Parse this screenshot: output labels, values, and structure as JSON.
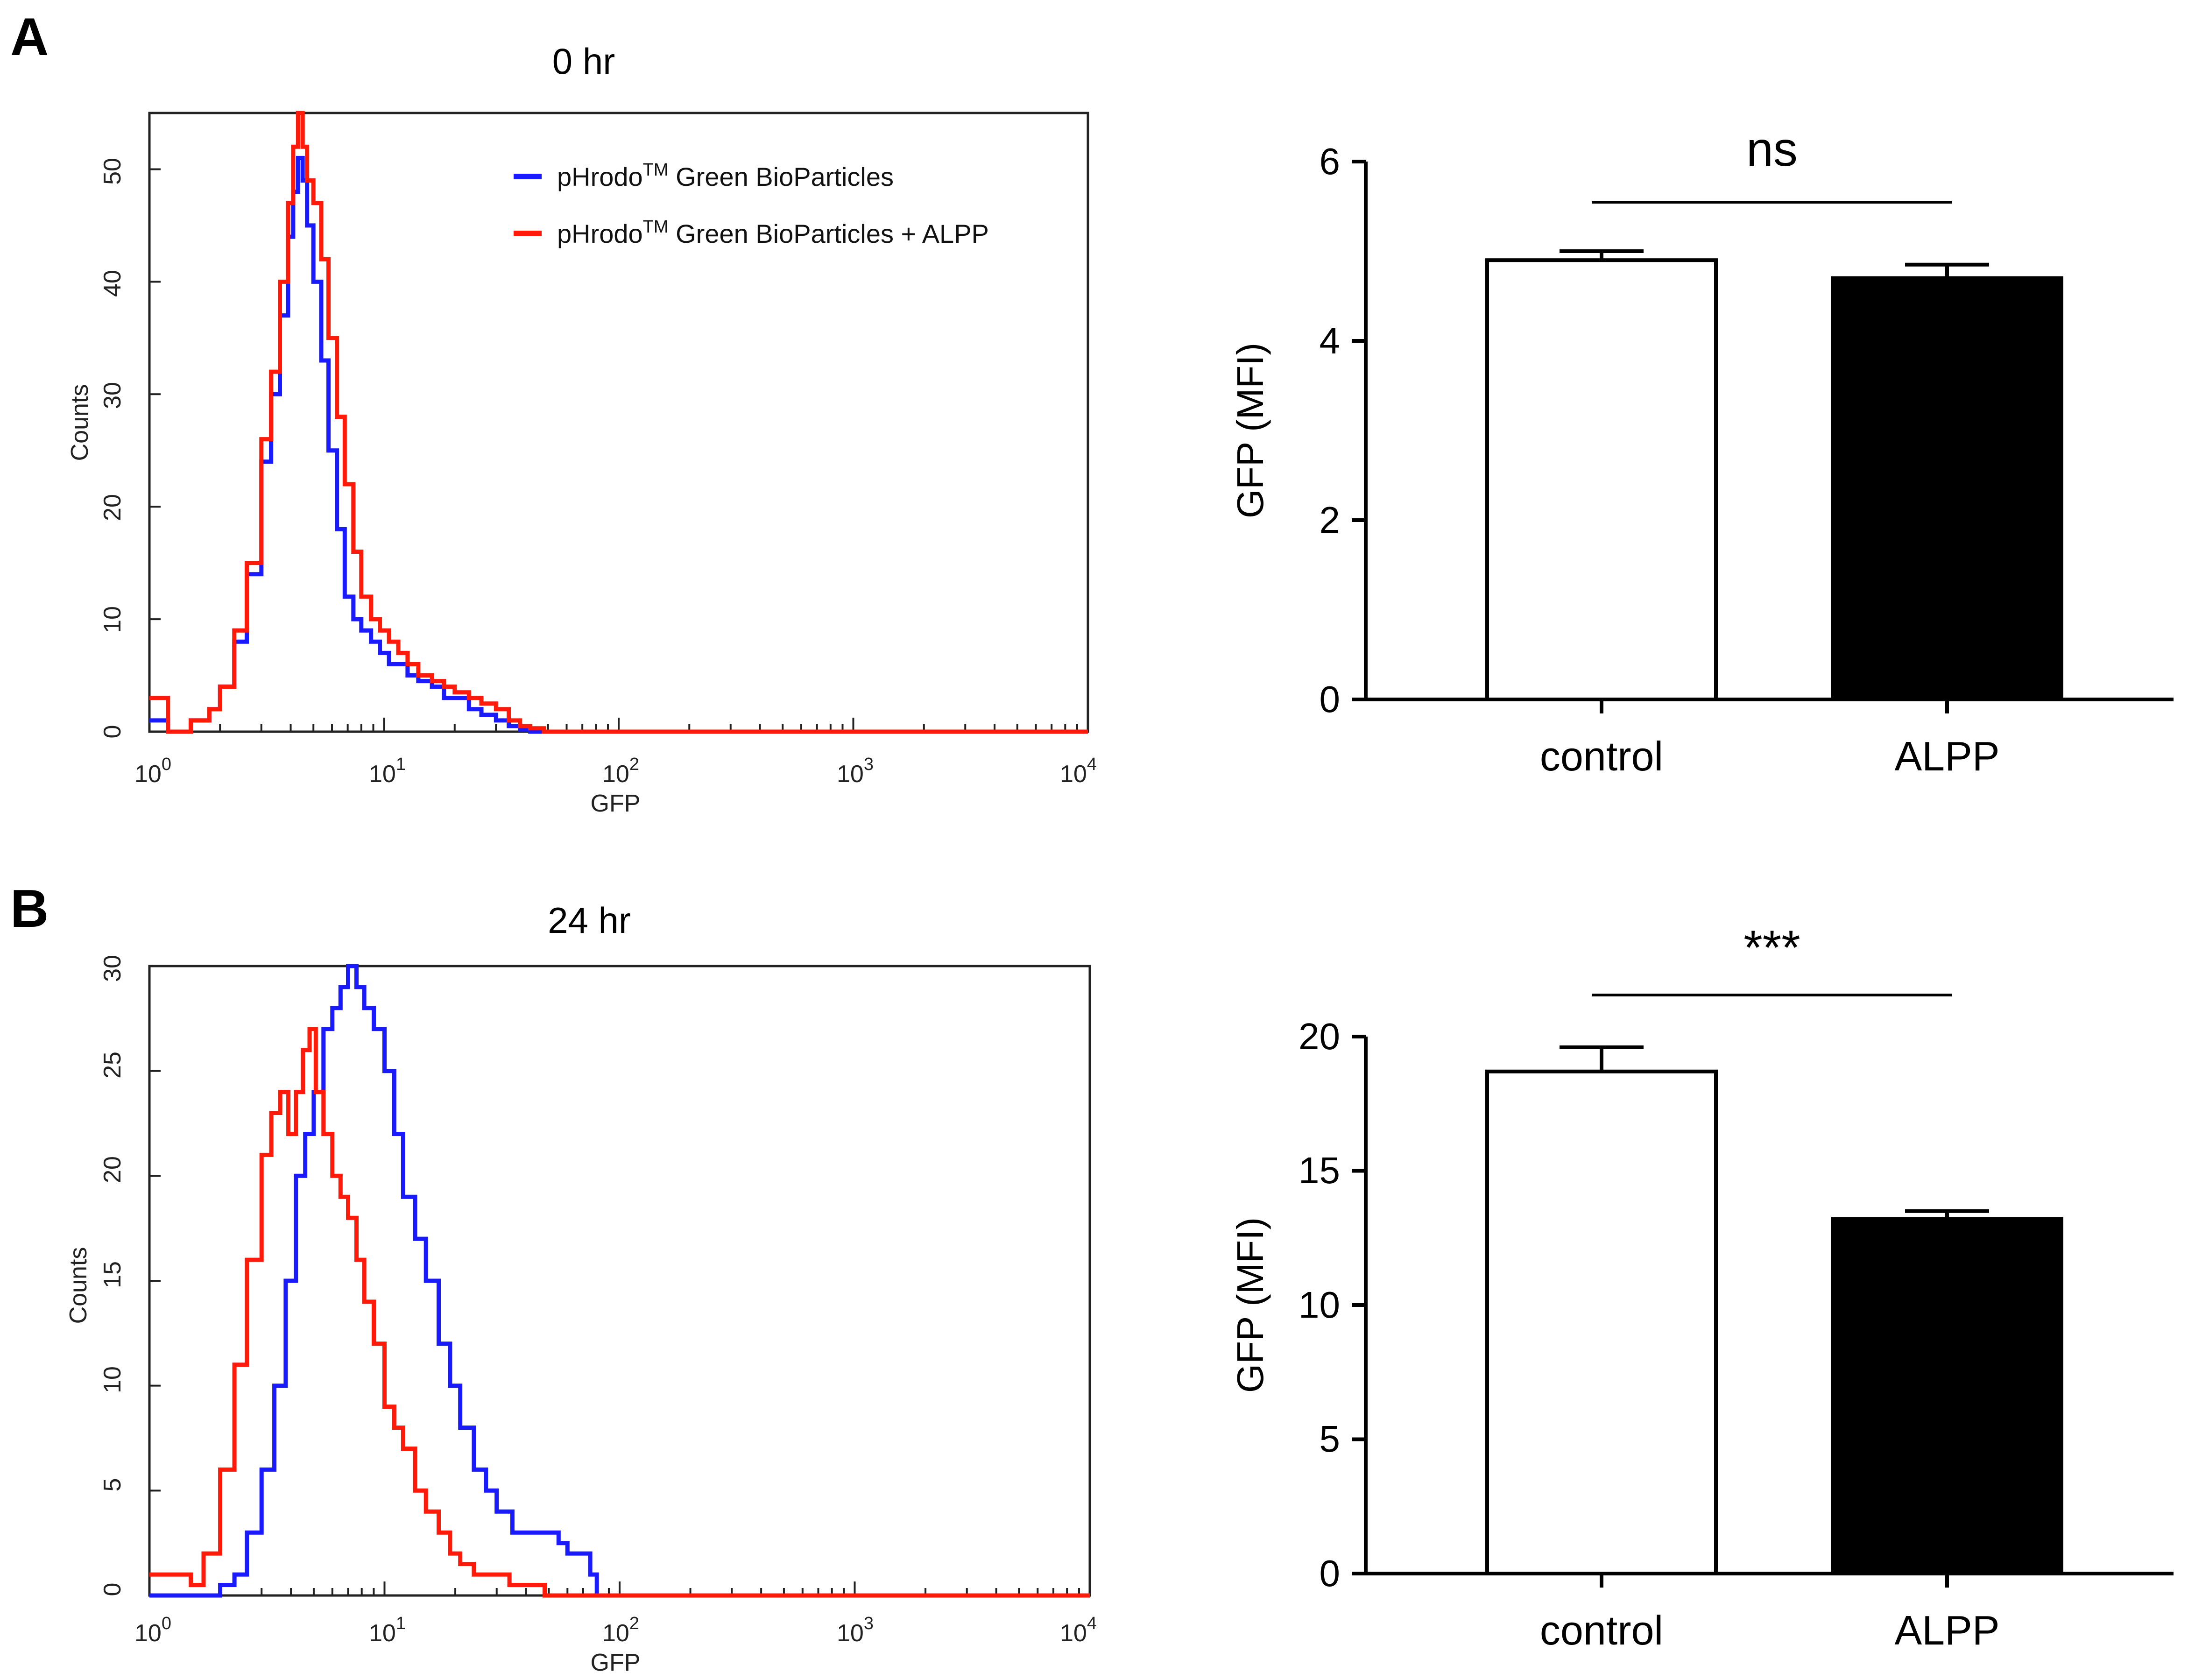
{
  "panels": [
    {
      "letter": "A",
      "histogram": {
        "title": "0 hr",
        "xlabel": "GFP",
        "ylabel": "Counts",
        "x_tick_labels": [
          {
            "base": "10",
            "exp": "0"
          },
          {
            "base": "10",
            "exp": "1"
          },
          {
            "base": "10",
            "exp": "2"
          },
          {
            "base": "10",
            "exp": "3"
          },
          {
            "base": "10",
            "exp": "4"
          }
        ],
        "y_tick_labels": [
          "0",
          "10",
          "20",
          "30",
          "40",
          "50"
        ]
      },
      "bar_chart": {
        "ylabel": "GFP (MFI)",
        "y_tick_labels": [
          "0",
          "2",
          "4",
          "6"
        ],
        "categories": [
          "control",
          "ALPP"
        ],
        "significance": "ns"
      }
    },
    {
      "letter": "B",
      "histogram": {
        "title": "24 hr",
        "xlabel": "GFP",
        "ylabel": "Counts",
        "x_tick_labels": [
          {
            "base": "10",
            "exp": "0"
          },
          {
            "base": "10",
            "exp": "1"
          },
          {
            "base": "10",
            "exp": "2"
          },
          {
            "base": "10",
            "exp": "3"
          },
          {
            "base": "10",
            "exp": "4"
          }
        ],
        "y_tick_labels": [
          "0",
          "5",
          "10",
          "15",
          "20",
          "25",
          "30"
        ]
      },
      "bar_chart": {
        "ylabel": "GFP (MFI)",
        "y_tick_labels": [
          "0",
          "5",
          "10",
          "15",
          "20"
        ],
        "categories": [
          "control",
          "ALPP"
        ],
        "significance": "***"
      }
    }
  ],
  "legend": {
    "items": [
      {
        "prefix": "pHrodo",
        "tm": "TM",
        "suffix": " Green BioParticles",
        "color": "#1a1aff"
      },
      {
        "prefix": "pHrodo",
        "tm": "TM",
        "suffix": " Green BioParticles + ALPP",
        "color": "#ff1a0a"
      }
    ]
  },
  "chart_data": [
    {
      "type": "line",
      "title": "0 hr",
      "xlabel": "GFP",
      "ylabel": "Counts",
      "x_scale": "log",
      "xlim": [
        1,
        10000
      ],
      "ylim": [
        0,
        55
      ],
      "legend_placement": "top-center",
      "series": [
        {
          "name": "pHrodo™ Green BioParticles",
          "color": "#1a1aff",
          "x": [
            1,
            1.2,
            1.5,
            1.8,
            2.0,
            2.3,
            2.6,
            3.0,
            3.3,
            3.6,
            3.9,
            4.1,
            4.3,
            4.5,
            4.7,
            5.0,
            5.4,
            5.8,
            6.3,
            6.8,
            7.4,
            8.0,
            8.8,
            9.6,
            10.5,
            11.5,
            12.6,
            14,
            16,
            18,
            20,
            23,
            26,
            30,
            34,
            38,
            42,
            50,
            100,
            1000,
            10000
          ],
          "y": [
            1,
            0,
            1,
            2,
            4,
            8,
            14,
            24,
            30,
            37,
            44,
            48,
            51,
            49,
            45,
            40,
            33,
            25,
            18,
            12,
            10,
            9,
            8,
            7,
            6,
            6,
            5,
            4.5,
            4,
            3,
            3,
            2,
            1.5,
            1,
            0.5,
            0.2,
            0,
            0,
            0,
            0,
            0
          ]
        },
        {
          "name": "pHrodo™ Green BioParticles + ALPP",
          "color": "#ff1a0a",
          "x": [
            1,
            1.2,
            1.5,
            1.8,
            2.0,
            2.3,
            2.6,
            3.0,
            3.3,
            3.6,
            3.9,
            4.1,
            4.3,
            4.5,
            4.7,
            5.0,
            5.4,
            5.8,
            6.3,
            6.8,
            7.4,
            8.0,
            8.8,
            9.6,
            10.5,
            11.5,
            12.6,
            14,
            16,
            18,
            20,
            23,
            26,
            30,
            34,
            38,
            42,
            48,
            100,
            1000,
            10000
          ],
          "y": [
            3,
            0,
            1,
            2,
            4,
            9,
            15,
            26,
            32,
            40,
            47,
            52,
            55,
            52,
            49,
            47,
            42,
            35,
            28,
            22,
            16,
            12,
            10,
            9,
            8,
            7,
            6,
            5,
            4.5,
            4,
            3.5,
            3,
            2.5,
            2,
            1,
            0.5,
            0.3,
            0,
            0,
            0,
            0
          ]
        }
      ]
    },
    {
      "type": "bar",
      "categories": [
        "control",
        "ALPP"
      ],
      "values": [
        4.9,
        4.7
      ],
      "errors": [
        0.1,
        0.15
      ],
      "bar_colors": [
        "#ffffff",
        "#000000"
      ],
      "ylabel": "GFP (MFI)",
      "ylim": [
        0,
        6
      ],
      "significance": "ns"
    },
    {
      "type": "line",
      "title": "24 hr",
      "xlabel": "GFP",
      "ylabel": "Counts",
      "x_scale": "log",
      "xlim": [
        1,
        10000
      ],
      "ylim": [
        0,
        30
      ],
      "series": [
        {
          "name": "pHrodo™ Green BioParticles",
          "color": "#1a1aff",
          "x": [
            1,
            1.3,
            1.7,
            2.0,
            2.3,
            2.6,
            3.0,
            3.4,
            3.8,
            4.2,
            4.6,
            5.0,
            5.5,
            6.0,
            6.5,
            7.0,
            7.6,
            8.2,
            9.0,
            10,
            11,
            12,
            13.5,
            15,
            17,
            19,
            21,
            24,
            27,
            30,
            35,
            40,
            45,
            50,
            55,
            60,
            65,
            70,
            75,
            80,
            100,
            1000,
            10000
          ],
          "y": [
            0,
            0,
            0,
            0.5,
            1,
            3,
            6,
            10,
            15,
            20,
            22,
            24,
            27,
            28,
            29,
            30,
            29,
            28,
            27,
            25,
            22,
            19,
            17,
            15,
            12,
            10,
            8,
            6,
            5,
            4,
            3,
            3,
            3,
            3,
            2.5,
            2,
            2,
            2,
            1,
            0,
            0,
            0,
            0
          ]
        },
        {
          "name": "pHrodo™ Green BioParticles + ALPP",
          "color": "#ff1a0a",
          "x": [
            1,
            1.2,
            1.5,
            1.7,
            2.0,
            2.3,
            2.6,
            3.0,
            3.3,
            3.6,
            3.9,
            4.2,
            4.5,
            4.8,
            5.1,
            5.5,
            6.0,
            6.5,
            7.0,
            7.6,
            8.2,
            9.0,
            10,
            11,
            12,
            13.5,
            15,
            17,
            19,
            21,
            24,
            27,
            30,
            34,
            38,
            42,
            48,
            55,
            70,
            100,
            1000,
            10000
          ],
          "y": [
            1,
            1,
            0.5,
            2,
            6,
            11,
            16,
            21,
            23,
            24,
            22,
            24,
            26,
            27,
            24,
            22,
            20,
            19,
            18,
            16,
            14,
            12,
            9,
            8,
            7,
            5,
            4,
            3,
            2,
            1.5,
            1,
            1,
            1,
            0.5,
            0.5,
            0.5,
            0,
            0,
            0,
            0,
            0,
            0
          ]
        }
      ]
    },
    {
      "type": "bar",
      "categories": [
        "control",
        "ALPP"
      ],
      "values": [
        18.7,
        13.2
      ],
      "errors": [
        0.9,
        0.3
      ],
      "bar_colors": [
        "#ffffff",
        "#000000"
      ],
      "ylabel": "GFP (MFI)",
      "ylim": [
        0,
        20
      ],
      "significance": "***"
    }
  ]
}
